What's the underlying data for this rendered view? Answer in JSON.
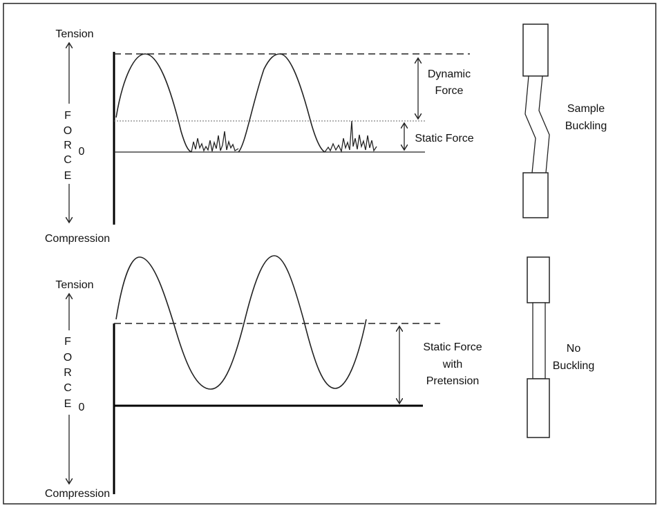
{
  "panels": [
    {
      "axis": {
        "top": "Tension",
        "letters": [
          "F",
          "O",
          "R",
          "C",
          "E"
        ],
        "zero": "0",
        "bottom": "Compression"
      },
      "annotations": [
        {
          "lines": [
            "Dynamic",
            "Force"
          ]
        },
        {
          "lines": [
            "Static Force"
          ]
        }
      ],
      "sample": {
        "lines": [
          "Sample",
          "Buckling"
        ]
      }
    },
    {
      "axis": {
        "top": "Tension",
        "letters": [
          "F",
          "O",
          "R",
          "C",
          "E"
        ],
        "zero": "0",
        "bottom": "Compression"
      },
      "annotations": [
        {
          "lines": [
            "Static Force",
            "with",
            "Pretension"
          ]
        }
      ],
      "sample": {
        "lines": [
          "No",
          "Buckling"
        ]
      }
    }
  ]
}
